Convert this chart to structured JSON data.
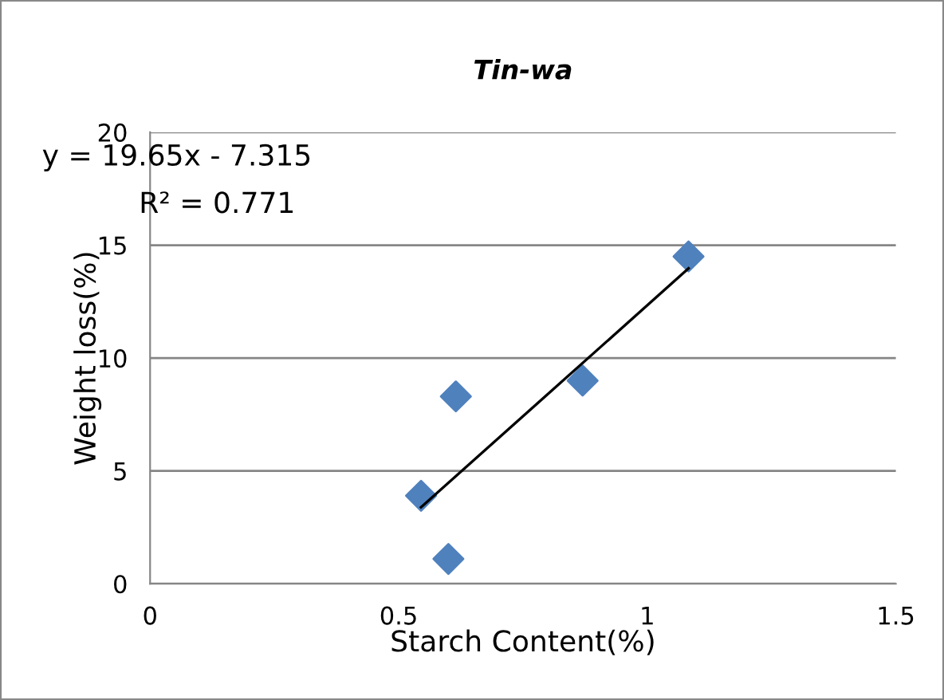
{
  "chart_data": {
    "type": "scatter",
    "title": "Tin-wa",
    "xlabel": "Starch Content(%)",
    "ylabel": "Weight loss(%)",
    "series": [
      {
        "color": "#4f81bd",
        "marker": "diamond",
        "x": [
          0.545,
          0.6,
          0.615,
          0.87,
          1.083
        ],
        "values": [
          3.9,
          1.1,
          8.3,
          9.0,
          14.5
        ]
      },
      {
        "type": "line",
        "color": "#000000",
        "marker": "none",
        "line_style": "solid",
        "x": [
          0.545,
          1.083
        ],
        "values": [
          3.39,
          13.97
        ]
      }
    ],
    "annotations": [
      "y = 19.65x - 7.315",
      "R² = 0.771"
    ],
    "xlim": [
      0,
      1.5
    ],
    "xticks": [
      0,
      0.5,
      1,
      1.5
    ],
    "ylim": [
      0,
      20
    ],
    "yticks": [
      0,
      5,
      10,
      15,
      20
    ],
    "grid": "y",
    "legend": false
  }
}
